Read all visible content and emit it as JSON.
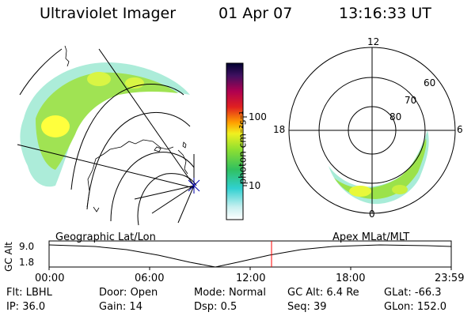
{
  "header": {
    "instrument": "Ultraviolet Imager",
    "date": "01 Apr 07",
    "time": "13:16:33 UT"
  },
  "colorbar": {
    "unit_label": "photon cm⁻²s⁻¹",
    "ticks": [
      "100",
      "10"
    ]
  },
  "polar": {
    "mlt_labels": [
      "12",
      "18",
      "6",
      "0"
    ],
    "mlat_labels": [
      "60",
      "70",
      "80"
    ]
  },
  "strip": {
    "left_caption": "Geographic Lat/Lon",
    "right_caption": "Apex MLat/MLT",
    "y_label": "GC Alt",
    "y_ticks": [
      "9.0",
      "1.8"
    ],
    "x_ticks": [
      "00:00",
      "06:00",
      "12:00",
      "18:00",
      "23:59"
    ],
    "marker_time_hours": 13.275,
    "marker_color": "#ff0000"
  },
  "footer": {
    "rows": [
      [
        {
          "label": "Flt:",
          "value": "LBHL"
        },
        {
          "label": "Door:",
          "value": "Open"
        },
        {
          "label": "Mode:",
          "value": "Normal"
        },
        {
          "label": "GC Alt:",
          "value": "6.4 Re"
        },
        {
          "label": "GLat:",
          "value": "-66.3"
        }
      ],
      [
        {
          "label": "IP:",
          "value": "36.0"
        },
        {
          "label": "Gain:",
          "value": "14"
        },
        {
          "label": "Dsp:",
          "value": "0.5"
        },
        {
          "label": "Seq:",
          "value": "39"
        },
        {
          "label": "GLon:",
          "value": "152.0"
        }
      ]
    ]
  },
  "colors": {
    "aurora_low": "#9fe7d0",
    "aurora_mid": "#8fe040",
    "aurora_high": "#ffff00"
  }
}
